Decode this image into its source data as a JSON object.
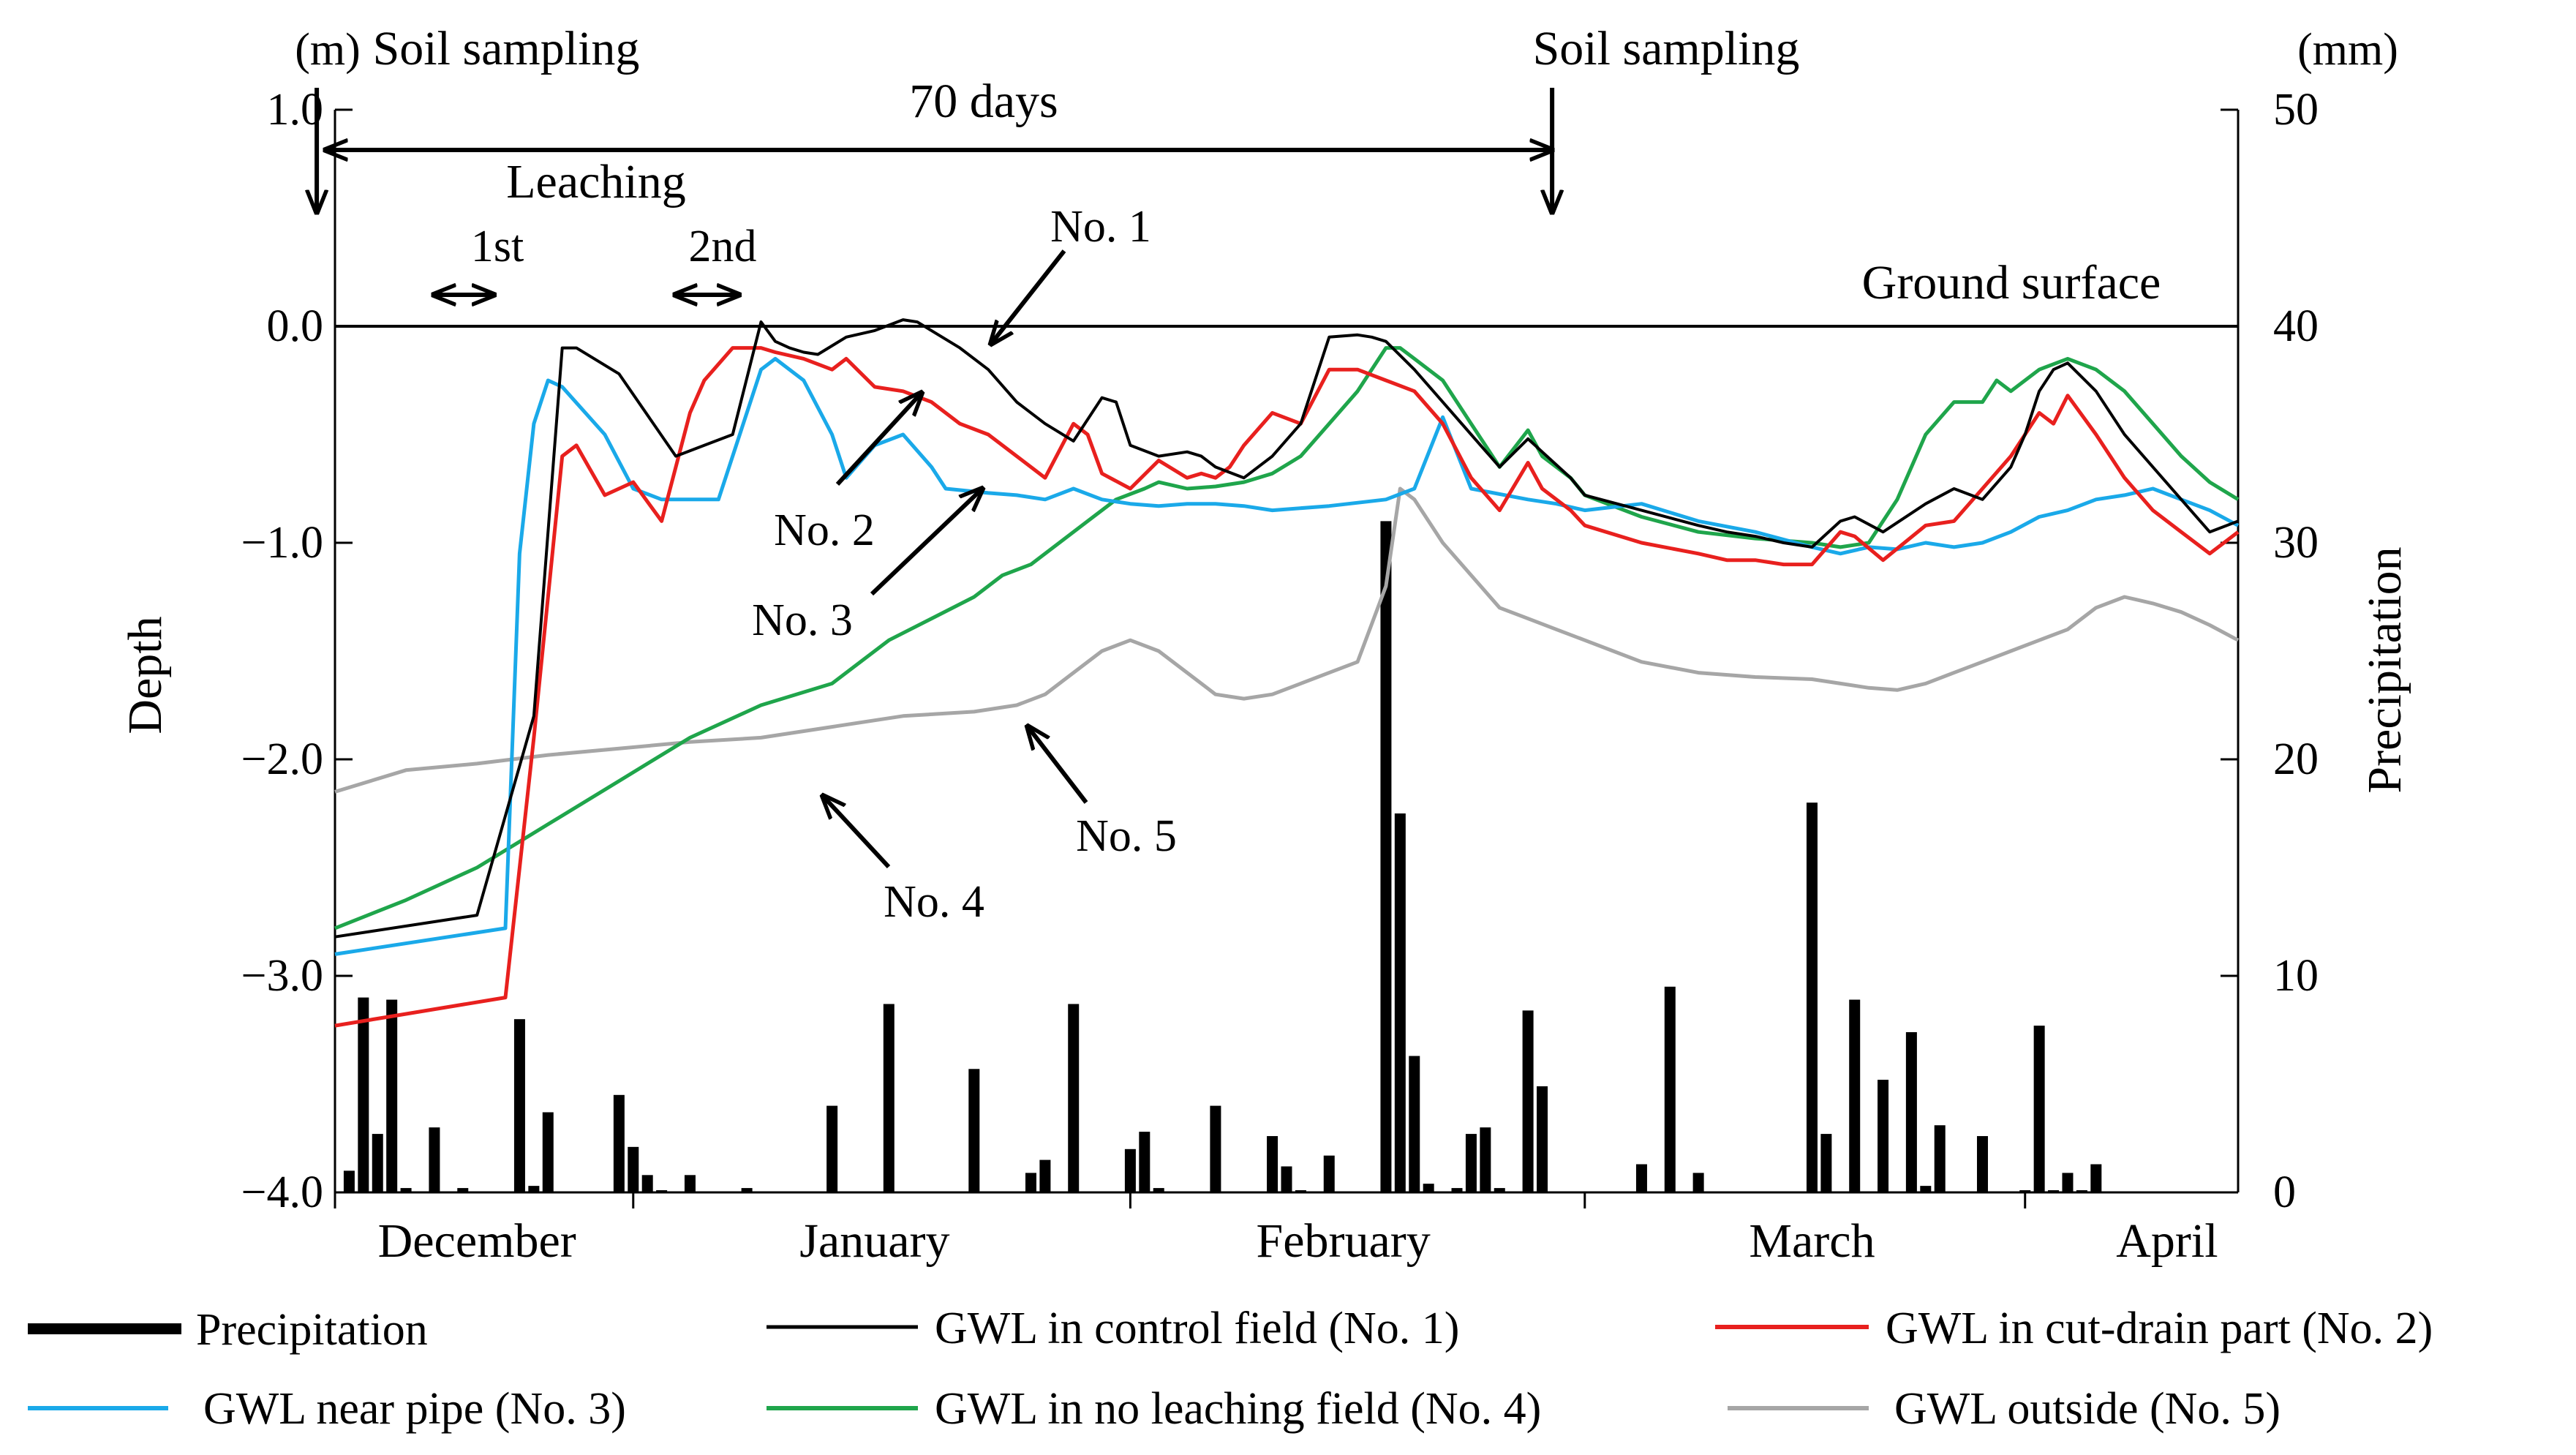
{
  "chart_data": {
    "type": "line+bar",
    "title": "",
    "ylabel": "Depth",
    "ylabel_unit": "(m)",
    "y2label": "Precipitation",
    "y2label_unit": "(mm)",
    "ylim": [
      -4.0,
      1.0
    ],
    "y2lim": [
      0,
      50
    ],
    "xlim": [
      0,
      134
    ],
    "yticks": [
      1.0,
      0.0,
      -1.0,
      -2.0,
      -3.0,
      -4.0
    ],
    "ytick_labels": [
      "1.0",
      "0.0",
      "−1.0",
      "−2.0",
      "−3.0",
      "−4.0"
    ],
    "y2ticks": [
      50,
      40,
      30,
      20,
      10,
      0
    ],
    "y2tick_labels": [
      "50",
      "40",
      "30",
      "20",
      "10",
      "0"
    ],
    "month_labels": [
      {
        "label": "December",
        "x": 10
      },
      {
        "label": "January",
        "x": 38
      },
      {
        "label": "February",
        "x": 71
      },
      {
        "label": "March",
        "x": 104
      },
      {
        "label": "April",
        "x": 129
      }
    ],
    "month_boundaries": [
      0,
      21,
      56,
      88,
      119
    ],
    "precipitation": {
      "name": "Precipitation",
      "color": "#000000",
      "x": [
        1,
        2,
        3,
        4,
        5,
        7,
        9,
        13,
        14,
        15,
        20,
        21,
        22,
        23,
        25,
        29,
        35,
        39,
        45,
        49,
        50,
        52,
        56,
        57,
        58,
        62,
        66,
        67,
        68,
        70,
        74,
        75,
        76,
        77,
        79,
        80,
        81,
        82,
        84,
        85,
        92,
        94,
        96,
        104,
        105,
        107,
        109,
        111,
        112,
        113,
        116,
        119,
        120,
        121,
        122,
        123,
        124
      ],
      "values": [
        1,
        9,
        2.7,
        8.9,
        0.2,
        3,
        0.2,
        8,
        0.3,
        3.7,
        4.5,
        2.1,
        0.8,
        0.1,
        0.8,
        0.2,
        4,
        8.7,
        5.7,
        0.9,
        1.5,
        8.7,
        2,
        2.8,
        0.2,
        4,
        2.6,
        1.2,
        0.1,
        1.7,
        31,
        17.5,
        6.3,
        0.4,
        0.2,
        2.7,
        3,
        0.2,
        8.4,
        4.9,
        1.3,
        9.5,
        0.9,
        18,
        2.7,
        8.9,
        5.2,
        7.4,
        0.3,
        3.1,
        2.6,
        0.1,
        7.7,
        0.1,
        0.9,
        0.1,
        1.3
      ]
    },
    "series": [
      {
        "name": "GWL in control field (No. 1)",
        "color": "#000000",
        "x": [
          0,
          10,
          14,
          16,
          17,
          20,
          24,
          26,
          28,
          30,
          31,
          32,
          33,
          34,
          36,
          38,
          40,
          41,
          44,
          46,
          48,
          50,
          52,
          54,
          55,
          56,
          58,
          60,
          61,
          62,
          64,
          66,
          68,
          70,
          72,
          73,
          74,
          76,
          78,
          80,
          82,
          84,
          85,
          87,
          88,
          92,
          96,
          98,
          100,
          102,
          104,
          106,
          107,
          109,
          112,
          114,
          116,
          118,
          119,
          120,
          121,
          122,
          124,
          126,
          128,
          130,
          132,
          134
        ],
        "values": [
          -2.82,
          -2.72,
          -1.8,
          -0.1,
          -0.1,
          -0.22,
          -0.6,
          -0.55,
          -0.5,
          0.02,
          -0.07,
          -0.1,
          -0.12,
          -0.13,
          -0.05,
          -0.02,
          0.03,
          0.02,
          -0.1,
          -0.2,
          -0.35,
          -0.45,
          -0.53,
          -0.33,
          -0.35,
          -0.55,
          -0.6,
          -0.58,
          -0.6,
          -0.65,
          -0.7,
          -0.6,
          -0.45,
          -0.05,
          -0.04,
          -0.05,
          -0.07,
          -0.2,
          -0.35,
          -0.5,
          -0.65,
          -0.52,
          -0.58,
          -0.7,
          -0.78,
          -0.85,
          -0.92,
          -0.95,
          -0.97,
          -1.0,
          -1.02,
          -0.9,
          -0.88,
          -0.95,
          -0.82,
          -0.75,
          -0.8,
          -0.65,
          -0.5,
          -0.3,
          -0.2,
          -0.17,
          -0.3,
          -0.5,
          -0.65,
          -0.8,
          -0.95,
          -0.9
        ]
      },
      {
        "name": "GWL in cut-drain part (No. 2)",
        "color": "#e8201e",
        "x": [
          0,
          12,
          14,
          16,
          17,
          19,
          21,
          23,
          25,
          26,
          28,
          30,
          31,
          33,
          35,
          36,
          38,
          40,
          42,
          44,
          46,
          48,
          50,
          52,
          53,
          54,
          56,
          58,
          60,
          61,
          62,
          63,
          64,
          66,
          68,
          70,
          72,
          74,
          76,
          78,
          80,
          82,
          84,
          85,
          87,
          88,
          92,
          96,
          98,
          100,
          102,
          104,
          106,
          107,
          109,
          112,
          114,
          116,
          118,
          119,
          120,
          121,
          122,
          124,
          126,
          128,
          130,
          132,
          134
        ],
        "values": [
          -3.23,
          -3.1,
          -1.9,
          -0.6,
          -0.55,
          -0.78,
          -0.72,
          -0.9,
          -0.4,
          -0.25,
          -0.1,
          -0.1,
          -0.12,
          -0.15,
          -0.2,
          -0.15,
          -0.28,
          -0.3,
          -0.35,
          -0.45,
          -0.5,
          -0.6,
          -0.7,
          -0.45,
          -0.5,
          -0.68,
          -0.75,
          -0.62,
          -0.7,
          -0.68,
          -0.7,
          -0.65,
          -0.55,
          -0.4,
          -0.45,
          -0.2,
          -0.2,
          -0.25,
          -0.3,
          -0.45,
          -0.7,
          -0.85,
          -0.63,
          -0.75,
          -0.85,
          -0.92,
          -1.0,
          -1.05,
          -1.08,
          -1.08,
          -1.1,
          -1.1,
          -0.95,
          -0.97,
          -1.08,
          -0.92,
          -0.9,
          -0.75,
          -0.6,
          -0.5,
          -0.4,
          -0.45,
          -0.32,
          -0.5,
          -0.7,
          -0.85,
          -0.95,
          -1.05,
          -0.95
        ]
      },
      {
        "name": "GWL near pipe (No. 3)",
        "color": "#1aa9e9",
        "x": [
          0,
          12,
          13,
          14,
          15,
          16,
          19,
          21,
          23,
          25,
          27,
          30,
          31,
          33,
          35,
          36,
          38,
          40,
          42,
          43,
          46,
          48,
          50,
          52,
          54,
          56,
          58,
          60,
          62,
          64,
          66,
          70,
          74,
          76,
          78,
          80,
          84,
          86,
          88,
          92,
          96,
          100,
          104,
          106,
          108,
          110,
          112,
          114,
          116,
          118,
          120,
          122,
          124,
          126,
          128,
          130,
          132,
          134
        ],
        "values": [
          -2.9,
          -2.78,
          -1.05,
          -0.45,
          -0.25,
          -0.28,
          -0.5,
          -0.75,
          -0.8,
          -0.8,
          -0.8,
          -0.2,
          -0.15,
          -0.25,
          -0.5,
          -0.7,
          -0.55,
          -0.5,
          -0.65,
          -0.75,
          -0.77,
          -0.78,
          -0.8,
          -0.75,
          -0.8,
          -0.82,
          -0.83,
          -0.82,
          -0.82,
          -0.83,
          -0.85,
          -0.83,
          -0.8,
          -0.75,
          -0.42,
          -0.75,
          -0.8,
          -0.82,
          -0.85,
          -0.82,
          -0.9,
          -0.95,
          -1.02,
          -1.05,
          -1.02,
          -1.03,
          -1.0,
          -1.02,
          -1.0,
          -0.95,
          -0.88,
          -0.85,
          -0.8,
          -0.78,
          -0.75,
          -0.8,
          -0.85,
          -0.92
        ]
      },
      {
        "name": "GWL in no leaching field (No. 4)",
        "color": "#1fa54b",
        "x": [
          0,
          5,
          10,
          15,
          20,
          25,
          30,
          35,
          37,
          39,
          42,
          45,
          47,
          49,
          51,
          53,
          55,
          57,
          58,
          60,
          62,
          64,
          66,
          68,
          70,
          72,
          74,
          75,
          76,
          78,
          80,
          82,
          84,
          85,
          87,
          88,
          92,
          96,
          100,
          104,
          106,
          108,
          110,
          112,
          114,
          116,
          117,
          118,
          120,
          122,
          124,
          126,
          128,
          130,
          132,
          134
        ],
        "values": [
          -2.78,
          -2.65,
          -2.5,
          -2.3,
          -2.1,
          -1.9,
          -1.75,
          -1.65,
          -1.55,
          -1.45,
          -1.35,
          -1.25,
          -1.15,
          -1.1,
          -1.0,
          -0.9,
          -0.8,
          -0.75,
          -0.72,
          -0.75,
          -0.74,
          -0.72,
          -0.68,
          -0.6,
          -0.45,
          -0.3,
          -0.1,
          -0.1,
          -0.15,
          -0.25,
          -0.45,
          -0.65,
          -0.48,
          -0.6,
          -0.7,
          -0.78,
          -0.88,
          -0.95,
          -0.98,
          -1.0,
          -1.02,
          -1.0,
          -0.8,
          -0.5,
          -0.35,
          -0.35,
          -0.25,
          -0.3,
          -0.2,
          -0.15,
          -0.2,
          -0.3,
          -0.45,
          -0.6,
          -0.72,
          -0.8
        ]
      },
      {
        "name": "GWL outside (No. 5)",
        "color": "#a6a6a6",
        "x": [
          0,
          5,
          10,
          15,
          20,
          25,
          30,
          35,
          40,
          45,
          48,
          50,
          52,
          54,
          56,
          58,
          60,
          62,
          64,
          66,
          68,
          70,
          72,
          74,
          75,
          76,
          78,
          80,
          82,
          84,
          86,
          88,
          90,
          92,
          96,
          100,
          104,
          106,
          108,
          110,
          112,
          114,
          116,
          118,
          120,
          122,
          124,
          126,
          128,
          130,
          132,
          134
        ],
        "values": [
          -2.15,
          -2.05,
          -2.02,
          -1.98,
          -1.95,
          -1.92,
          -1.9,
          -1.85,
          -1.8,
          -1.78,
          -1.75,
          -1.7,
          -1.6,
          -1.5,
          -1.45,
          -1.5,
          -1.6,
          -1.7,
          -1.72,
          -1.7,
          -1.65,
          -1.6,
          -1.55,
          -1.2,
          -0.75,
          -0.8,
          -1.0,
          -1.15,
          -1.3,
          -1.35,
          -1.4,
          -1.45,
          -1.5,
          -1.55,
          -1.6,
          -1.62,
          -1.63,
          -1.65,
          -1.67,
          -1.68,
          -1.65,
          -1.6,
          -1.55,
          -1.5,
          -1.45,
          -1.4,
          -1.3,
          -1.25,
          -1.28,
          -1.32,
          -1.38,
          -1.45
        ]
      }
    ],
    "reference_lines": [
      {
        "label": "Ground surface",
        "y": 0.0
      }
    ],
    "annotations": {
      "sampling_label": "Soil sampling",
      "sampling_x": [
        5,
        84
      ],
      "period_label": "70 days",
      "leaching_label": "Leaching",
      "leaching_first": {
        "label": "1st",
        "x1": 9,
        "x2": 13
      },
      "leaching_second": {
        "label": "2nd",
        "x1": 26,
        "x2": 30
      },
      "callouts": [
        "No. 1",
        "No. 2",
        "No. 3",
        "No. 4",
        "No. 5"
      ]
    },
    "legend": {
      "placement": "bottom",
      "entries": [
        "Precipitation",
        "GWL in control field (No. 1)",
        "GWL in cut-drain part (No. 2)",
        "GWL near pipe (No. 3)",
        "GWL in no leaching field (No. 4)",
        "GWL outside (No. 5)"
      ]
    }
  }
}
